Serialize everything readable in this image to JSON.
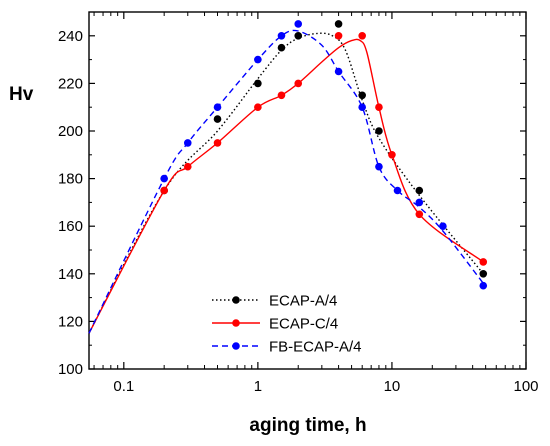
{
  "chart_data": {
    "type": "line",
    "title": "",
    "xlabel": "aging time, h",
    "ylabel": "Hv",
    "x_scale": "log",
    "xlim": [
      0.055,
      100
    ],
    "ylim": [
      100,
      250
    ],
    "x_ticks": [
      0.1,
      1,
      10,
      100
    ],
    "x_tick_labels": [
      "0.1",
      "1",
      "10",
      "100"
    ],
    "y_ticks": [
      100,
      120,
      140,
      160,
      180,
      200,
      220,
      240
    ],
    "y_tick_labels": [
      "100",
      "120",
      "140",
      "160",
      "180",
      "200",
      "220",
      "240"
    ],
    "grid": false,
    "legend_position": "bottom-center",
    "series": [
      {
        "name": "ECAP-A/4",
        "color": "#000000",
        "line_style": "dotted",
        "x": [
          0.2,
          0.5,
          1,
          1.5,
          2,
          4,
          6,
          8,
          16,
          48
        ],
        "y": [
          175,
          205,
          220,
          235,
          240,
          245,
          215,
          200,
          175,
          140
        ]
      },
      {
        "name": "ECAP-C/4",
        "color": "#ff0000",
        "line_style": "solid",
        "x": [
          0.2,
          0.3,
          0.5,
          1,
          1.5,
          2,
          4,
          6,
          8,
          10,
          16,
          48
        ],
        "y": [
          175,
          185,
          195,
          210,
          215,
          220,
          240,
          240,
          210,
          190,
          165,
          145
        ]
      },
      {
        "name": "FB-ECAP-A/4",
        "color": "#0000ff",
        "line_style": "dashed",
        "x": [
          0.2,
          0.3,
          0.5,
          1,
          1.5,
          2,
          4,
          6,
          8,
          11,
          16,
          24,
          48
        ],
        "y": [
          180,
          195,
          210,
          230,
          240,
          245,
          225,
          210,
          185,
          175,
          170,
          160,
          135
        ]
      }
    ],
    "fit_curves": [
      {
        "series": "ECAP-A/4",
        "x": [
          0.055,
          0.2,
          0.5,
          1,
          1.5,
          2,
          2.8,
          3.6,
          4.5,
          6,
          8,
          16,
          48
        ],
        "y": [
          115,
          175,
          200,
          222,
          234,
          239,
          241,
          240,
          234,
          213,
          197,
          173,
          140
        ]
      },
      {
        "series": "ECAP-C/4",
        "x": [
          0.055,
          0.2,
          0.3,
          0.5,
          1,
          1.5,
          2,
          3,
          4,
          5,
          5.8,
          6.5,
          8,
          10,
          16,
          48
        ],
        "y": [
          115,
          175,
          185,
          195,
          210,
          215,
          220,
          229,
          235,
          238,
          238,
          233,
          210,
          190,
          165,
          145
        ]
      },
      {
        "series": "FB-ECAP-A/4",
        "x": [
          0.055,
          0.2,
          0.3,
          0.5,
          1,
          1.5,
          2,
          3,
          4,
          6,
          8,
          11,
          16,
          24,
          48
        ],
        "y": [
          115,
          180,
          195,
          210,
          230,
          240,
          242,
          236,
          225,
          210,
          185,
          175,
          168,
          158,
          136
        ]
      }
    ]
  }
}
